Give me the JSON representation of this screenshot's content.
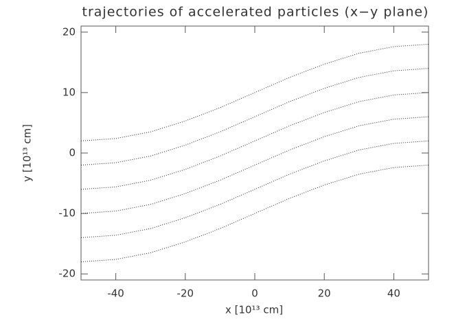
{
  "chart_data": {
    "type": "line",
    "title": "trajectories of accelerated particles (x−y plane)",
    "xlabel": "x [10¹³ cm]",
    "ylabel": "y [10¹³ cm]",
    "x": [
      -50,
      -40,
      -30,
      -20,
      -10,
      0,
      10,
      20,
      30,
      40,
      50
    ],
    "series": [
      {
        "color": "#222222",
        "values": [
          2,
          2.4,
          3.5,
          5.3,
          7.5,
          10,
          12.5,
          14.7,
          16.5,
          17.6,
          18
        ]
      },
      {
        "color": "#222222",
        "values": [
          -2,
          -1.6,
          -0.5,
          1.3,
          3.5,
          6,
          8.5,
          10.7,
          12.5,
          13.6,
          14
        ]
      },
      {
        "color": "#222222",
        "values": [
          -6,
          -5.6,
          -4.5,
          -2.7,
          -0.5,
          2,
          4.5,
          6.7,
          8.5,
          9.6,
          10
        ]
      },
      {
        "color": "#222222",
        "values": [
          -10,
          -9.6,
          -8.5,
          -6.7,
          -4.5,
          -2,
          0.5,
          2.7,
          4.5,
          5.6,
          6
        ]
      },
      {
        "color": "#222222",
        "values": [
          -14,
          -13.6,
          -12.5,
          -10.7,
          -8.5,
          -6,
          -3.5,
          -1.3,
          0.5,
          1.6,
          2
        ]
      },
      {
        "color": "#222222",
        "values": [
          -18,
          -17.6,
          -16.5,
          -14.7,
          -12.5,
          -10,
          -7.5,
          -5.3,
          -3.5,
          -2.4,
          -2
        ]
      }
    ],
    "xlim": [
      -50,
      50
    ],
    "ylim": [
      -21,
      21
    ],
    "xticks": [
      -40,
      -20,
      0,
      20,
      40
    ],
    "yticks": [
      -20,
      -10,
      0,
      10,
      20
    ]
  }
}
